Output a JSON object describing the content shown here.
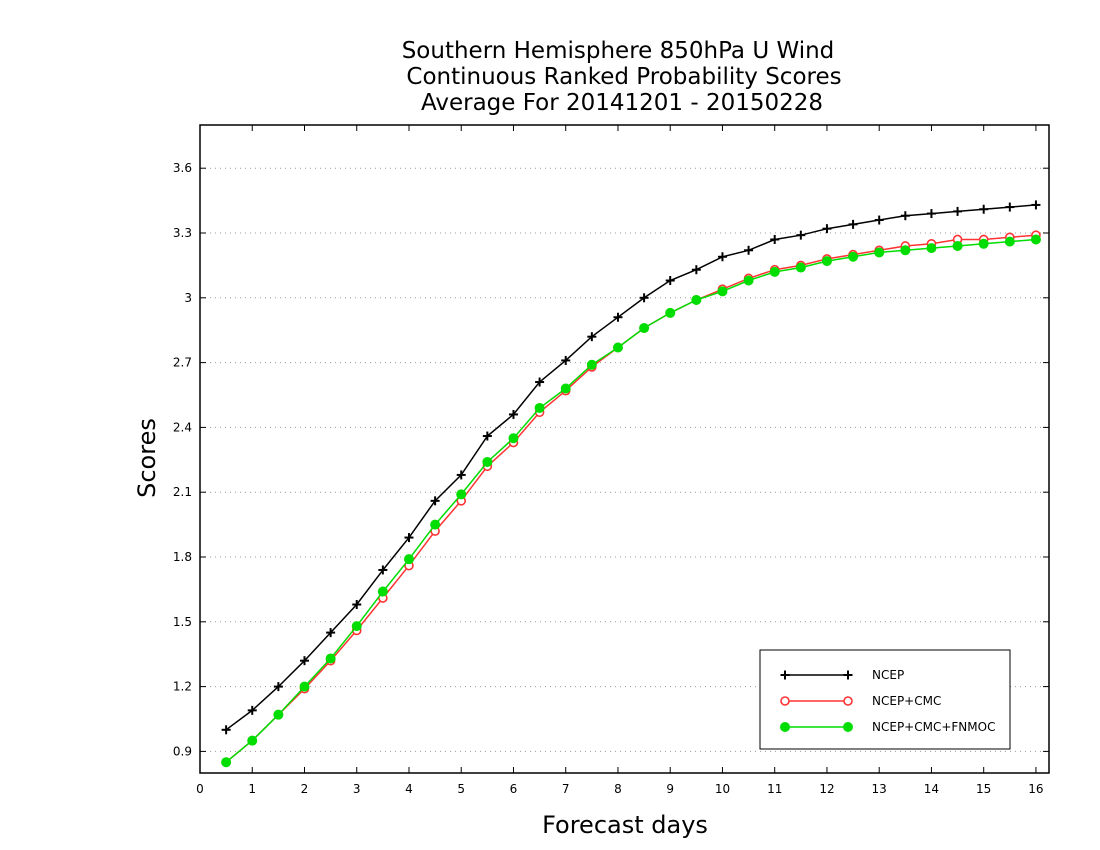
{
  "chart_data": {
    "type": "line",
    "title": [
      "Southern Hemisphere 850hPa U Wind",
      "Continuous Ranked Probability Scores",
      "Average For 20141201 - 20150228"
    ],
    "xlabel": "Forecast days",
    "ylabel": "Scores",
    "xlim": [
      0,
      16.25
    ],
    "ylim": [
      0.8,
      3.8
    ],
    "xticks": [
      0,
      1,
      2,
      3,
      4,
      5,
      6,
      7,
      8,
      9,
      10,
      11,
      12,
      13,
      14,
      15,
      16
    ],
    "xtick_labels": [
      "0",
      "1",
      "2",
      "3",
      "4",
      "5",
      "6",
      "7",
      "8",
      "9",
      "10",
      "11",
      "12",
      "13",
      "14",
      "15",
      "16"
    ],
    "yticks": [
      0.9,
      1.2,
      1.5,
      1.8,
      2.1,
      2.4,
      2.7,
      3.0,
      3.3,
      3.6
    ],
    "ytick_labels": [
      "0.9",
      "1.2",
      "1.5",
      "1.8",
      "2.1",
      "2.4",
      "2.7",
      "3",
      "3.3",
      "3.6"
    ],
    "grid": "horizontal dotted",
    "legend_position": "bottom-right",
    "x": [
      0.5,
      1.0,
      1.5,
      2.0,
      2.5,
      3.0,
      3.5,
      4.0,
      4.5,
      5.0,
      5.5,
      6.0,
      6.5,
      7.0,
      7.5,
      8.0,
      8.5,
      9.0,
      9.5,
      10.0,
      10.5,
      11.0,
      11.5,
      12.0,
      12.5,
      13.0,
      13.5,
      14.0,
      14.5,
      15.0,
      15.5,
      16.0
    ],
    "series": [
      {
        "name": "NCEP",
        "color": "#000000",
        "marker": "plus",
        "values": [
          1.0,
          1.09,
          1.2,
          1.32,
          1.45,
          1.58,
          1.74,
          1.89,
          2.06,
          2.18,
          2.36,
          2.46,
          2.61,
          2.71,
          2.82,
          2.91,
          3.0,
          3.08,
          3.13,
          3.19,
          3.22,
          3.27,
          3.29,
          3.32,
          3.34,
          3.36,
          3.38,
          3.39,
          3.4,
          3.41,
          3.42,
          3.43
        ]
      },
      {
        "name": "NCEP+CMC",
        "color": "#ff3333",
        "marker": "open-circle",
        "values": [
          0.85,
          0.95,
          1.07,
          1.19,
          1.32,
          1.46,
          1.61,
          1.76,
          1.92,
          2.06,
          2.22,
          2.33,
          2.47,
          2.57,
          2.68,
          2.77,
          2.86,
          2.93,
          2.99,
          3.04,
          3.09,
          3.13,
          3.15,
          3.18,
          3.2,
          3.22,
          3.24,
          3.25,
          3.27,
          3.27,
          3.28,
          3.29
        ]
      },
      {
        "name": "NCEP+CMC+FNMOC",
        "color": "#00dd00",
        "marker": "filled-circle",
        "values": [
          0.85,
          0.95,
          1.07,
          1.2,
          1.33,
          1.48,
          1.64,
          1.79,
          1.95,
          2.09,
          2.24,
          2.35,
          2.49,
          2.58,
          2.69,
          2.77,
          2.86,
          2.93,
          2.99,
          3.03,
          3.08,
          3.12,
          3.14,
          3.17,
          3.19,
          3.21,
          3.22,
          3.23,
          3.24,
          3.25,
          3.26,
          3.27
        ]
      }
    ]
  }
}
